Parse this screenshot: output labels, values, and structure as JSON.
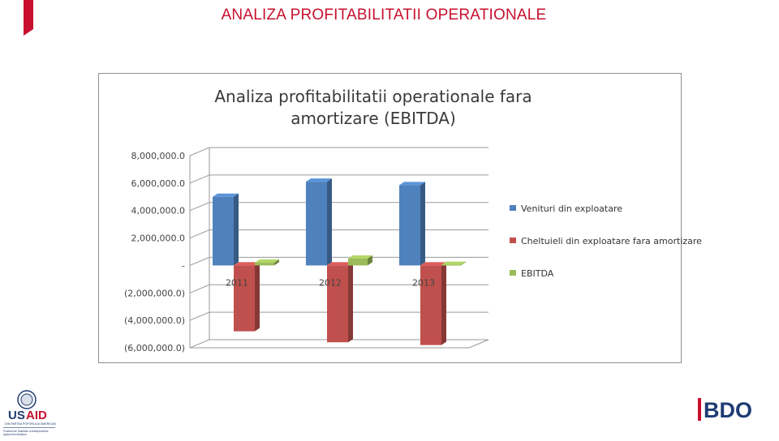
{
  "page": {
    "title": "ANALIZA PROFITABILITATII OPERATIONALE",
    "accent_color": "#c8102e"
  },
  "chart_data": {
    "type": "bar",
    "three_d": true,
    "title_lines": [
      "Analiza profitabilitatii operationale fara",
      "amortizare (EBITDA)"
    ],
    "categories": [
      "2011",
      "2012",
      "2013"
    ],
    "series": [
      {
        "name": "Venituri din exploatare",
        "color": "#4f81bd",
        "values": [
          5000000,
          6100000,
          5850000
        ]
      },
      {
        "name": "Cheltuieli din exploatare fara amortizare",
        "color": "#c0504d",
        "values": [
          -4800000,
          -5600000,
          -5800000
        ]
      },
      {
        "name": "EBITDA",
        "color": "#9bbb59",
        "values": [
          200000,
          500000,
          50000
        ]
      }
    ],
    "y_ticks": [
      {
        "value": 8000000,
        "label": "8,000,000.0"
      },
      {
        "value": 6000000,
        "label": "6,000,000.0"
      },
      {
        "value": 4000000,
        "label": "4,000,000.0"
      },
      {
        "value": 2000000,
        "label": "2,000,000.0"
      },
      {
        "value": 0,
        "label": "-"
      },
      {
        "value": -2000000,
        "label": "(2,000,000.0)"
      },
      {
        "value": -4000000,
        "label": "(4,000,000.0)"
      },
      {
        "value": -6000000,
        "label": "(6,000,000.0)"
      }
    ],
    "ylim": [
      -6000000,
      8000000
    ],
    "grid": true,
    "legend_position": "right"
  },
  "logos": {
    "usaid": {
      "name": "USAID",
      "tagline": "DIN PARTEA POPORULUI AMERICAN",
      "subtitle": "Proiectul de Susținere a Antreprenorilor Agricoli din Moldova"
    },
    "bdo": {
      "name": "BDO"
    }
  }
}
